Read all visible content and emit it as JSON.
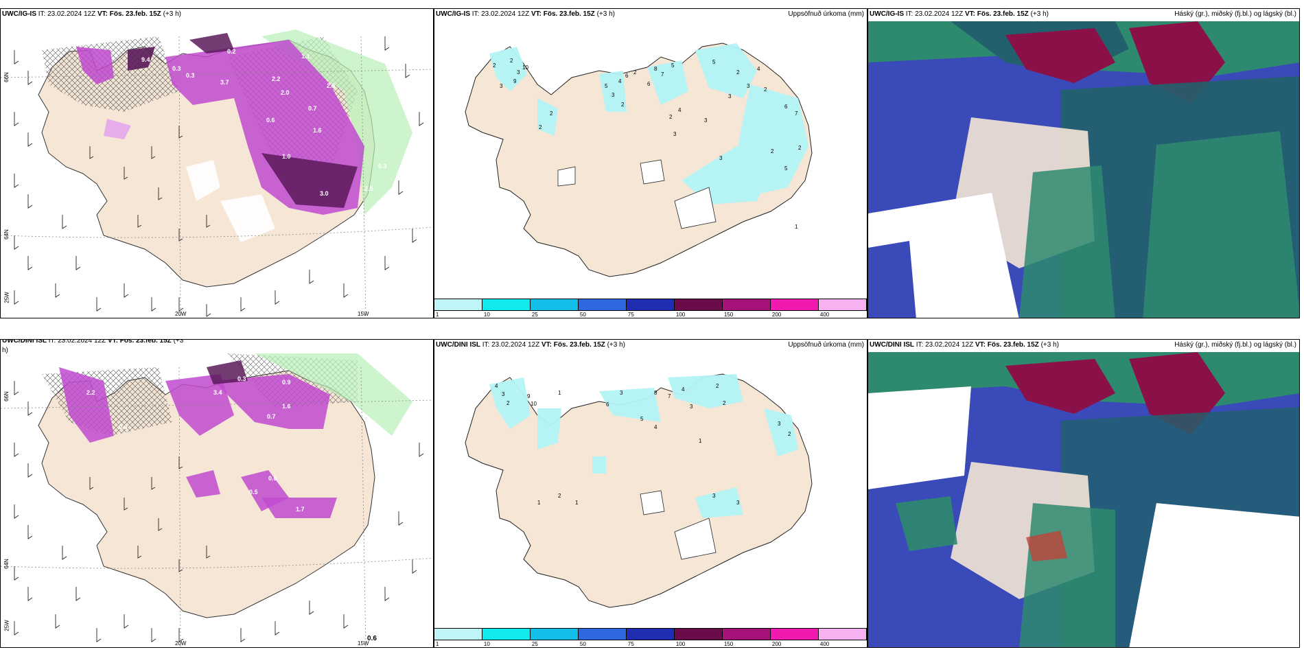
{
  "panels": {
    "top_left": {
      "model": "UWC/IG-IS",
      "it_label": "IT:",
      "it_value": "23.02.2024 12Z",
      "vt_label": "VT:",
      "vt_value": "Fös. 23.feb. 15Z",
      "step": "(+3 h)"
    },
    "top_mid": {
      "model": "UWC/IG-IS",
      "it_label": "IT:",
      "it_value": "23.02.2024 12Z",
      "vt_label": "VT:",
      "vt_value": "Fös. 23.feb. 15Z",
      "step": "(+3 h)",
      "right": "Uppsöfnuð úrkoma (mm)"
    },
    "top_right": {
      "model": "UWC/IG-IS",
      "it_label": "IT:",
      "it_value": "23.02.2024 12Z",
      "vt_label": "VT:",
      "vt_value": "Fös. 23.feb. 15Z",
      "step": "(+3 h)",
      "right": "Háský (gr.), miðský (fj.bl.) og lágský (bl.)"
    },
    "bot_left": {
      "model": "UWC/DINI ISL",
      "it_label": "IT:",
      "it_value": "23.02.2024 12Z",
      "vt_label": "VT:",
      "vt_value": "Fös. 23.feb. 15Z",
      "step": "(+3",
      "wrap": "h)"
    },
    "bot_mid": {
      "model": "UWC/DINI ISL",
      "it_label": "IT:",
      "it_value": "23.02.2024 12Z",
      "vt_label": "VT:",
      "vt_value": "Fös. 23.feb. 15Z",
      "step": "(+3 h)",
      "right": "Uppsöfnuð úrkoma (mm)"
    },
    "bot_right": {
      "model": "UWC/DINI ISL",
      "it_label": "IT:",
      "it_value": "23.02.2024 12Z",
      "vt_label": "VT:",
      "vt_value": "Fös. 23.feb. 15Z",
      "step": "(+3 h)",
      "right": "Háský (gr.), miðský (fj.bl.) og lágský (bl.)"
    }
  },
  "axis_labels": {
    "lat_66": "66N",
    "lat_64": "64N",
    "lon_25": "25W",
    "lon_20": "20W",
    "lon_15": "15W"
  },
  "colorbar": {
    "labels": [
      "1",
      "10",
      "25",
      "50",
      "75",
      "100",
      "150",
      "200",
      "400"
    ],
    "colors": [
      "#bff5f7",
      "#10e9ee",
      "#12bfe8",
      "#2f67e0",
      "#1f2db0",
      "#6a0c4a",
      "#a5127a",
      "#f01ab0",
      "#f7b1f0"
    ]
  },
  "precip_values_top_mid": [
    "2",
    "3",
    "2",
    "3",
    "9",
    "10",
    "2",
    "2",
    "5",
    "3",
    "4",
    "6",
    "2",
    "2",
    "6",
    "7",
    "5",
    "8",
    "2",
    "4",
    "3",
    "3",
    "5",
    "3",
    "2",
    "3",
    "4",
    "2",
    "6",
    "7",
    "2",
    "5",
    "2",
    "3",
    "1"
  ],
  "precip_values_bot_mid": [
    "1",
    "4",
    "3",
    "2",
    "9",
    "10",
    "6",
    "3",
    "8",
    "7",
    "4",
    "3",
    "2",
    "2",
    "1",
    "3",
    "2",
    "5",
    "4",
    "3",
    "2",
    "1",
    "3",
    "1"
  ],
  "snow_values_top_left": [
    "9.4",
    "0.3",
    "0.3",
    "0.2",
    "2.2",
    "1.1",
    "2.5",
    "3.7",
    "1.0",
    "2.0",
    "2.5",
    "3.0",
    "0.7",
    "1.6",
    "0.6",
    "0.3"
  ],
  "snow_values_bot_left": [
    "0.3",
    "3.4",
    "2.2",
    "0.6",
    "0.9",
    "1.6",
    "0.7",
    "0.5",
    "1.7",
    "0.6"
  ],
  "corner_value": "0.6",
  "colors": {
    "land": "#f5e6d6",
    "snow_light": "#e6a6ec",
    "snow_mid": "#c04ad0",
    "snow_dark": "#5a1a5a",
    "rain_green": "#b8f0b8",
    "cyan": "#b3f4f6",
    "cloud_high": "#8b1048",
    "cloud_mid": "#3a4ab8",
    "cloud_low": "#2e8a6e",
    "cloud_teal": "#21606c"
  }
}
